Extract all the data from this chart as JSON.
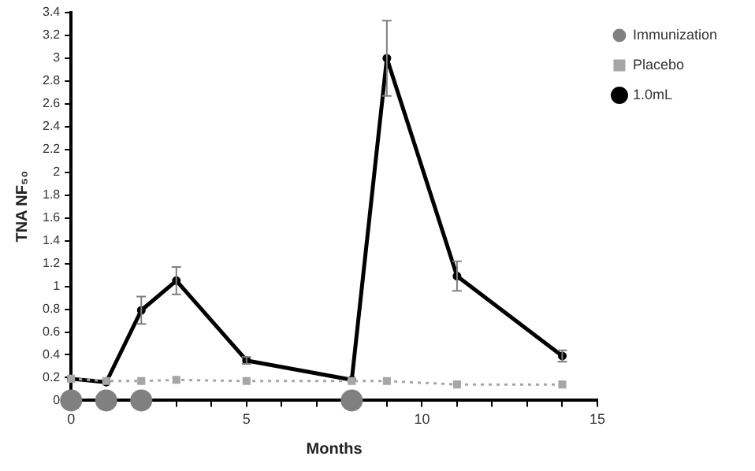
{
  "chart_data": {
    "type": "line",
    "xlabel": "Months",
    "ylabel": "TNA NF₅₀",
    "xlim": [
      0,
      15
    ],
    "xticks": [
      0,
      {
        "value": 1,
        "label": null
      },
      {
        "value": 2,
        "label": null
      },
      {
        "value": 3,
        "label": null
      },
      {
        "value": 4,
        "label": null
      },
      5,
      {
        "value": 6,
        "label": null
      },
      {
        "value": 7,
        "label": null
      },
      {
        "value": 8,
        "label": null
      },
      {
        "value": 9,
        "label": null
      },
      10,
      {
        "value": 11,
        "label": null
      },
      {
        "value": 12,
        "label": null
      },
      {
        "value": 13,
        "label": null
      },
      {
        "value": 14,
        "label": null
      },
      15
    ],
    "ylim": [
      0,
      3.4
    ],
    "yticks": [
      0,
      0.2,
      0.4,
      0.6,
      0.8,
      1,
      1.2,
      1.4,
      1.6,
      1.8,
      2,
      2.2,
      2.4,
      2.6,
      2.8,
      3,
      3.2,
      3.4
    ],
    "grid": false,
    "legend": "top right",
    "series": [
      {
        "name": "1.0mL",
        "type": "line",
        "color": "#000000",
        "marker": "circle",
        "line_style": "solid",
        "x": [
          0,
          1,
          2,
          3,
          5,
          8,
          9,
          11,
          14
        ],
        "values": [
          0.19,
          0.16,
          0.79,
          1.05,
          0.35,
          0.18,
          3.0,
          1.09,
          0.39
        ],
        "errors": [
          null,
          null,
          0.12,
          0.12,
          0.03,
          null,
          0.33,
          0.13,
          0.05
        ]
      },
      {
        "name": "Placebo",
        "type": "line",
        "color": "#a6a6a6",
        "marker": "square",
        "line_style": "dotted",
        "x": [
          0,
          1,
          2,
          3,
          5,
          8,
          9,
          11,
          14
        ],
        "values": [
          0.19,
          0.17,
          0.17,
          0.18,
          0.17,
          0.17,
          0.17,
          0.14,
          0.14
        ]
      },
      {
        "name": "Immunization",
        "type": "scatter",
        "color": "#808080",
        "marker": "circle",
        "x": [
          0,
          1,
          2,
          8
        ],
        "values": [
          0,
          0,
          0,
          0
        ]
      }
    ]
  }
}
